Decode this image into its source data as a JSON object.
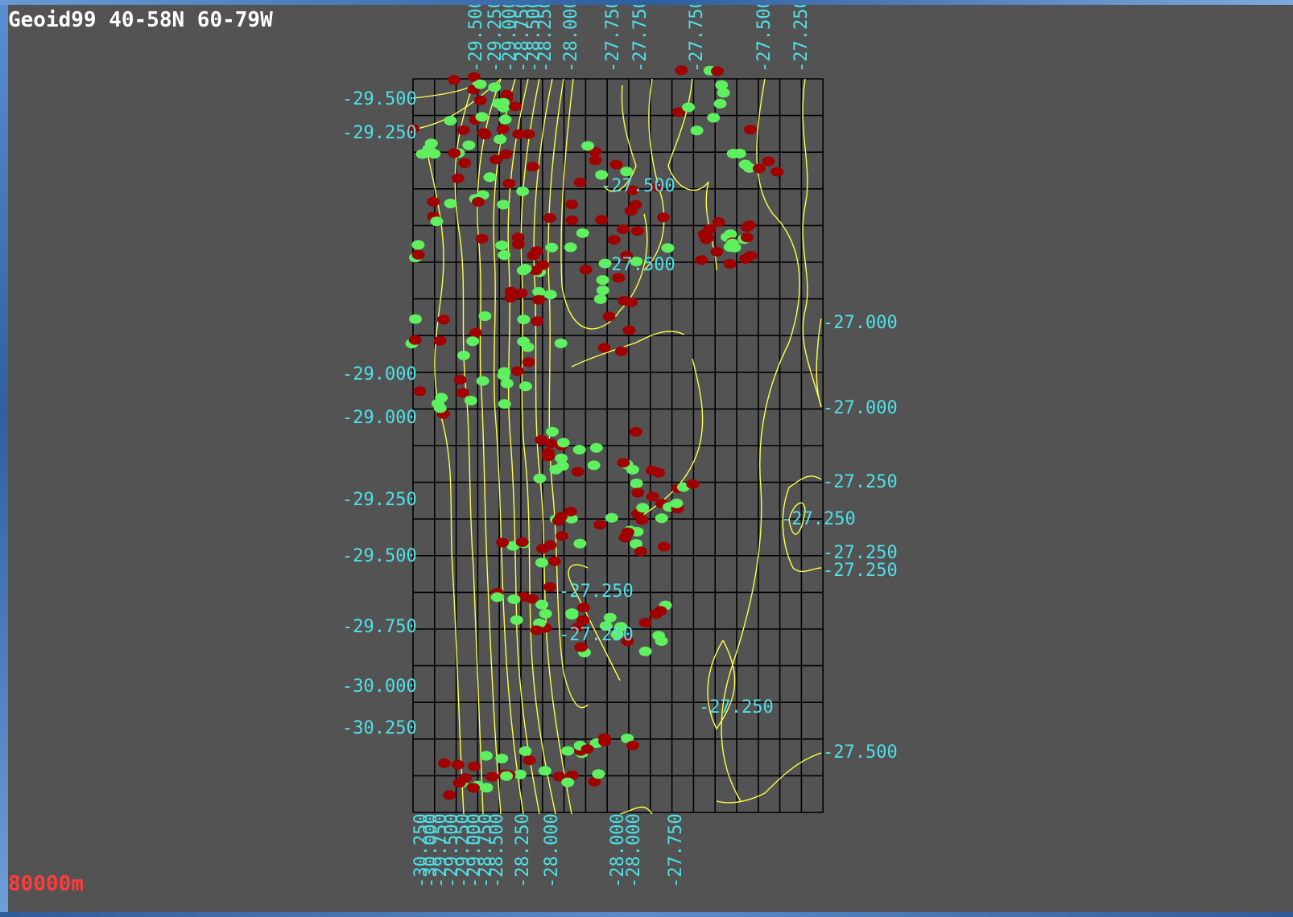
{
  "map": {
    "title": "Geoid99 40-58N 60-79W",
    "scale_label": "80000m",
    "colors": {
      "background": "#535353",
      "grid": "#000000",
      "contour": "#ffff4a",
      "label": "#4fe0e8",
      "marker_red": "#a00000",
      "marker_green": "#5ff05f",
      "title": "#ffffff",
      "scale": "#ff3b3b"
    },
    "grid": {
      "columns": 19,
      "rows": 20
    },
    "top_labels": [
      "-29.500",
      "-29.250",
      "-29.000",
      "-28.750",
      "-28.500",
      "-28.250",
      "-28.000",
      "-27.750",
      "-27.750",
      "-27.750",
      "-27.500",
      "-27.250"
    ],
    "bottom_labels": [
      "-30.250",
      "-30.000",
      "-29.750",
      "-29.500",
      "-29.250",
      "-29.000",
      "-28.750",
      "-28.500",
      "-28.250",
      "-28.000",
      "-28.000",
      "-28.000",
      "-27.750"
    ],
    "left_labels": [
      "-29.500",
      "-29.250",
      "-29.000",
      "-29.000",
      "-29.250",
      "-29.500",
      "-29.750",
      "-30.000",
      "-30.250"
    ],
    "right_labels": [
      "-27.000",
      "-27.000",
      "-27.250",
      "-27.250",
      "-27.250",
      "-27.500"
    ],
    "inner_labels": [
      "-27.500",
      "-27.500",
      "-27.250",
      "-27.250",
      "-27.250",
      "-27.250"
    ]
  }
}
